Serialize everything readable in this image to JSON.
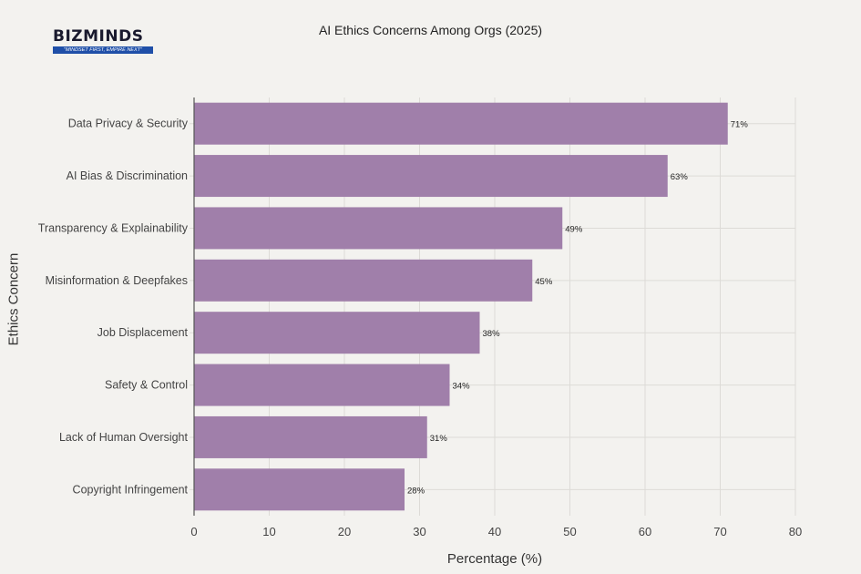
{
  "logo": {
    "brand": "BIZMINDS",
    "tagline": "\"MINDSET FIRST, EMPIRE NEXT\""
  },
  "chart_data": {
    "type": "bar",
    "orientation": "horizontal",
    "title": "AI Ethics Concerns Among Orgs (2025)",
    "xlabel": "Percentage (%)",
    "ylabel": "Ethics Concern",
    "categories": [
      "Data Privacy & Security",
      "AI Bias & Discrimination",
      "Transparency & Explainability",
      "Misinformation & Deepfakes",
      "Job Displacement",
      "Safety & Control",
      "Lack of Human Oversight",
      "Copyright Infringement"
    ],
    "values": [
      71,
      63,
      49,
      45,
      38,
      34,
      31,
      28
    ],
    "data_labels": [
      "71%",
      "63%",
      "49%",
      "45%",
      "38%",
      "34%",
      "31%",
      "28%"
    ],
    "xlim": [
      0,
      80
    ],
    "xticks": [
      0,
      10,
      20,
      30,
      40,
      50,
      60,
      70,
      80
    ],
    "grid": true,
    "bar_color": "#a07faa",
    "background": "#f3f2ef"
  }
}
